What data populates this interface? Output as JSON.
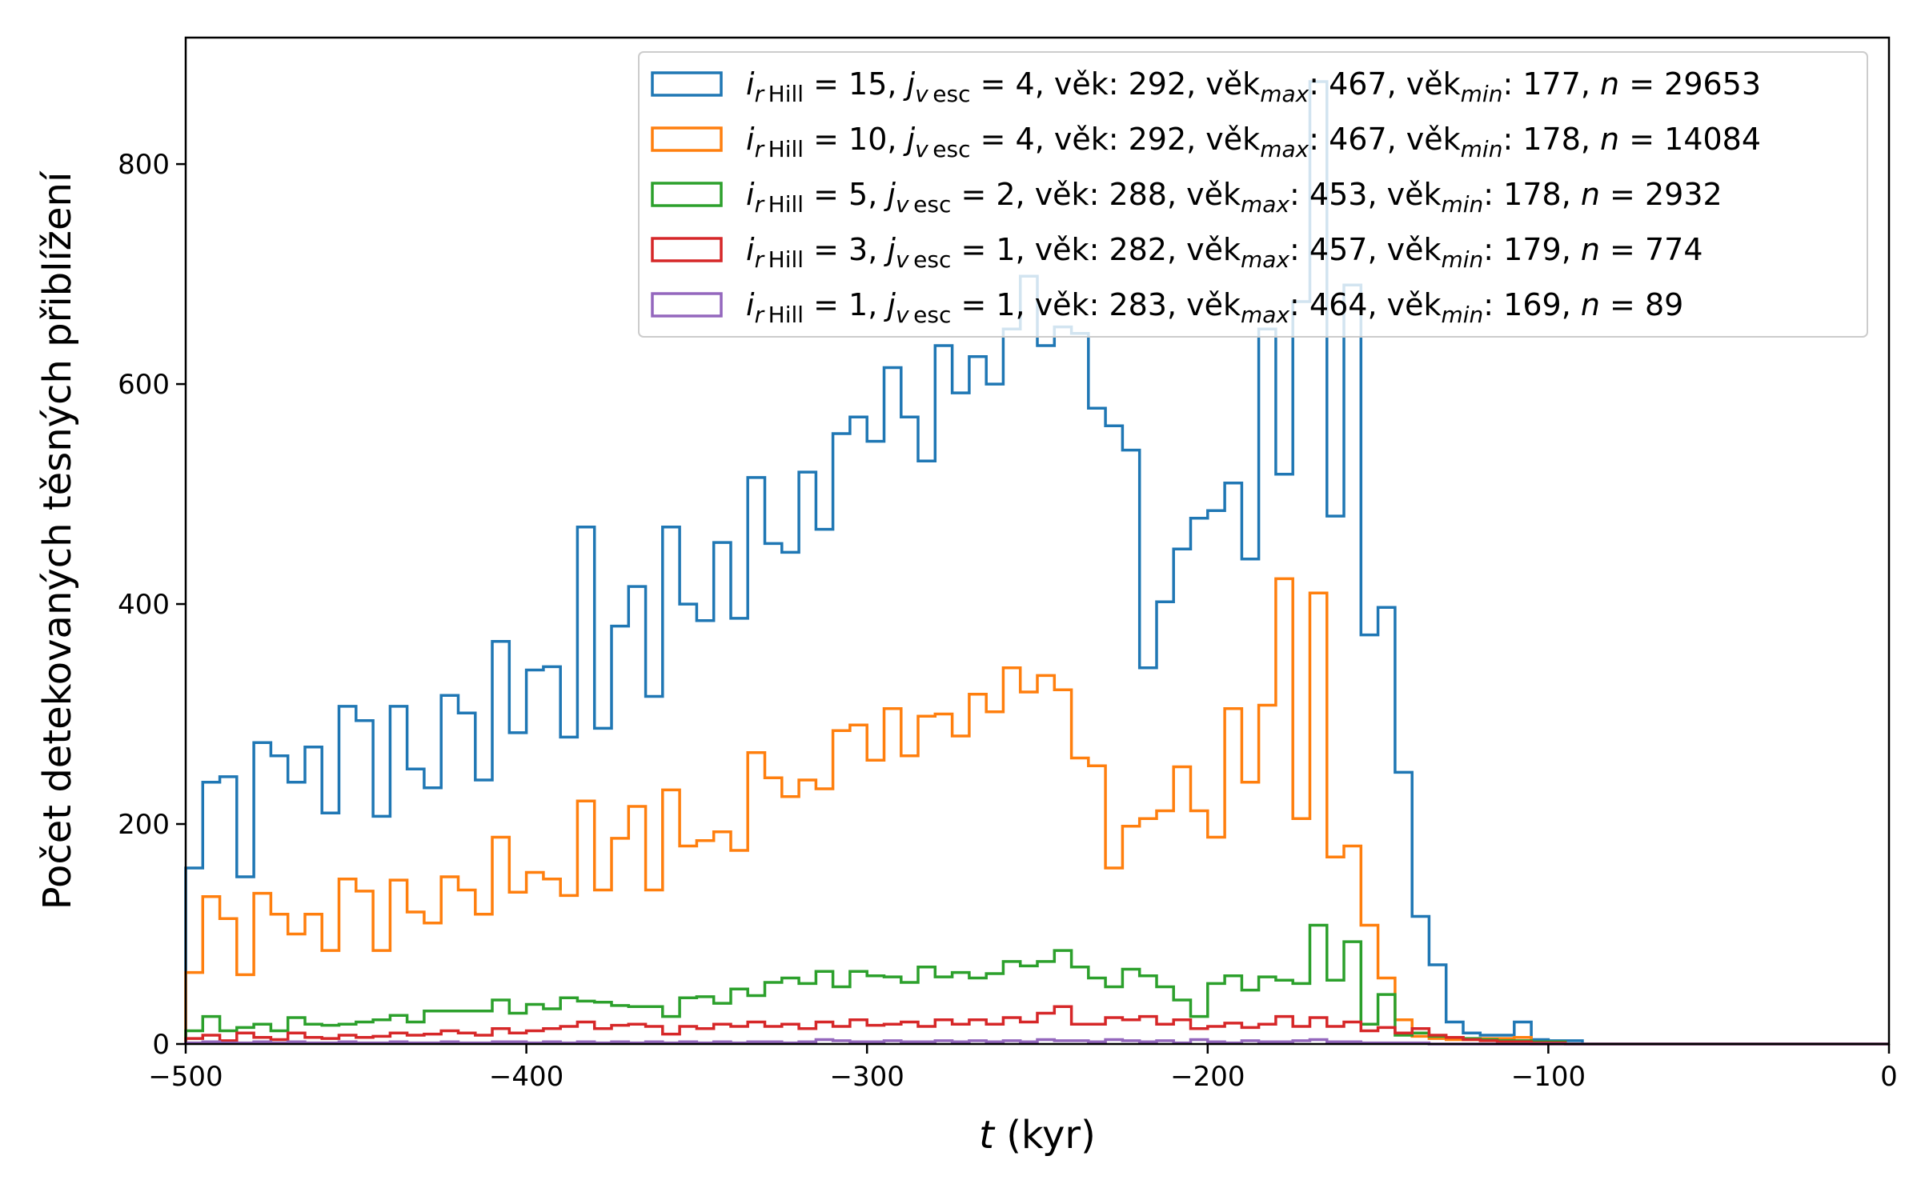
{
  "chart_data": {
    "type": "histogram",
    "xlabel_var": "t",
    "xlabel_unit": " (kyr)",
    "ylabel": "Počet detekovaných těsných přiblížení",
    "xlim": [
      -500,
      0
    ],
    "ylim": [
      0,
      915
    ],
    "xticks": [
      -500,
      -400,
      -300,
      -200,
      -100,
      0
    ],
    "yticks": [
      0,
      200,
      400,
      600,
      800
    ],
    "bin_edges_start": -500,
    "bin_width": 5,
    "legend_position": "upper right",
    "series": [
      {
        "color": "#1f77b4",
        "legend": {
          "r": "15",
          "v": "4",
          "vek": "292",
          "vekmax": "467",
          "vekmin": "177",
          "n": "29653"
        },
        "values": [
          160,
          238,
          243,
          152,
          274,
          262,
          238,
          270,
          210,
          307,
          294,
          207,
          307,
          250,
          233,
          317,
          301,
          240,
          366,
          283,
          340,
          343,
          279,
          470,
          287,
          380,
          416,
          316,
          470,
          400,
          385,
          456,
          387,
          515,
          455,
          447,
          520,
          468,
          555,
          570,
          548,
          615,
          570,
          530,
          635,
          592,
          625,
          600,
          650,
          698,
          635,
          652,
          646,
          578,
          562,
          540,
          342,
          402,
          450,
          478,
          485,
          510,
          441,
          650,
          518,
          675,
          875,
          480,
          690,
          372,
          397,
          247,
          116,
          72,
          20,
          10,
          8,
          8,
          20,
          4,
          3,
          3
        ]
      },
      {
        "color": "#ff7f0e",
        "legend": {
          "r": "10",
          "v": "4",
          "vek": "292",
          "vekmax": "467",
          "vekmin": "178",
          "n": "14084"
        },
        "values": [
          65,
          134,
          114,
          63,
          137,
          118,
          100,
          118,
          85,
          150,
          139,
          85,
          149,
          120,
          110,
          152,
          140,
          118,
          188,
          138,
          156,
          150,
          135,
          221,
          140,
          187,
          216,
          140,
          231,
          180,
          185,
          193,
          176,
          265,
          242,
          225,
          240,
          232,
          285,
          290,
          258,
          305,
          262,
          298,
          300,
          280,
          318,
          302,
          342,
          320,
          335,
          322,
          260,
          253,
          160,
          198,
          205,
          212,
          252,
          212,
          188,
          305,
          238,
          308,
          423,
          205,
          410,
          170,
          180,
          108,
          60,
          22,
          7,
          5,
          4,
          4,
          5,
          5,
          6
        ]
      },
      {
        "color": "#2ca02c",
        "legend": {
          "r": " 5",
          "v": "2",
          "vek": "288",
          "vekmax": "453",
          "vekmin": "178",
          "n": "2932"
        },
        "values": [
          12,
          25,
          12,
          15,
          18,
          12,
          24,
          18,
          17,
          18,
          20,
          22,
          26,
          20,
          30,
          30,
          30,
          30,
          40,
          28,
          36,
          32,
          42,
          39,
          38,
          35,
          34,
          34,
          25,
          42,
          43,
          37,
          50,
          44,
          56,
          60,
          55,
          66,
          52,
          66,
          62,
          61,
          56,
          70,
          61,
          65,
          60,
          64,
          75,
          71,
          75,
          85,
          70,
          60,
          52,
          68,
          62,
          52,
          40,
          25,
          55,
          62,
          49,
          61,
          58,
          55,
          108,
          58,
          93,
          18,
          45,
          8,
          10,
          7,
          6,
          5,
          4,
          3,
          3,
          2,
          2
        ]
      },
      {
        "color": "#d62728",
        "legend": {
          "r": " 3",
          "v": "1",
          "vek": "282",
          "vekmax": "457",
          "vekmin": "179",
          "n": "774"
        },
        "values": [
          5,
          8,
          3,
          10,
          6,
          4,
          10,
          6,
          5,
          8,
          6,
          7,
          10,
          8,
          9,
          12,
          10,
          8,
          14,
          10,
          12,
          14,
          16,
          20,
          14,
          17,
          18,
          16,
          9,
          16,
          14,
          18,
          16,
          20,
          16,
          18,
          14,
          20,
          16,
          22,
          17,
          18,
          20,
          16,
          22,
          18,
          22,
          18,
          24,
          20,
          28,
          34,
          18,
          18,
          24,
          22,
          25,
          18,
          22,
          14,
          16,
          19,
          15,
          18,
          25,
          16,
          24,
          16,
          20,
          12,
          15,
          10,
          14,
          8,
          6,
          4,
          3,
          2,
          2,
          1,
          1
        ]
      },
      {
        "color": "#9467bd",
        "legend": {
          "r": " 1",
          "v": "1",
          "vek": "283",
          "vekmax": "464",
          "vekmin": "169",
          "n": "89"
        },
        "values": [
          1,
          2,
          1,
          1,
          2,
          1,
          2,
          1,
          1,
          2,
          1,
          1,
          2,
          1,
          1,
          2,
          1,
          1,
          2,
          2,
          1,
          2,
          1,
          2,
          1,
          2,
          1,
          2,
          1,
          2,
          1,
          2,
          1,
          2,
          2,
          1,
          2,
          4,
          3,
          2,
          2,
          3,
          2,
          2,
          3,
          2,
          3,
          2,
          3,
          2,
          4,
          3,
          3,
          2,
          4,
          3,
          2,
          3,
          1,
          4,
          2,
          1,
          3,
          2,
          2,
          3,
          4,
          2,
          2,
          1,
          1,
          1,
          1,
          0,
          0,
          0,
          0,
          0,
          0
        ]
      }
    ]
  }
}
